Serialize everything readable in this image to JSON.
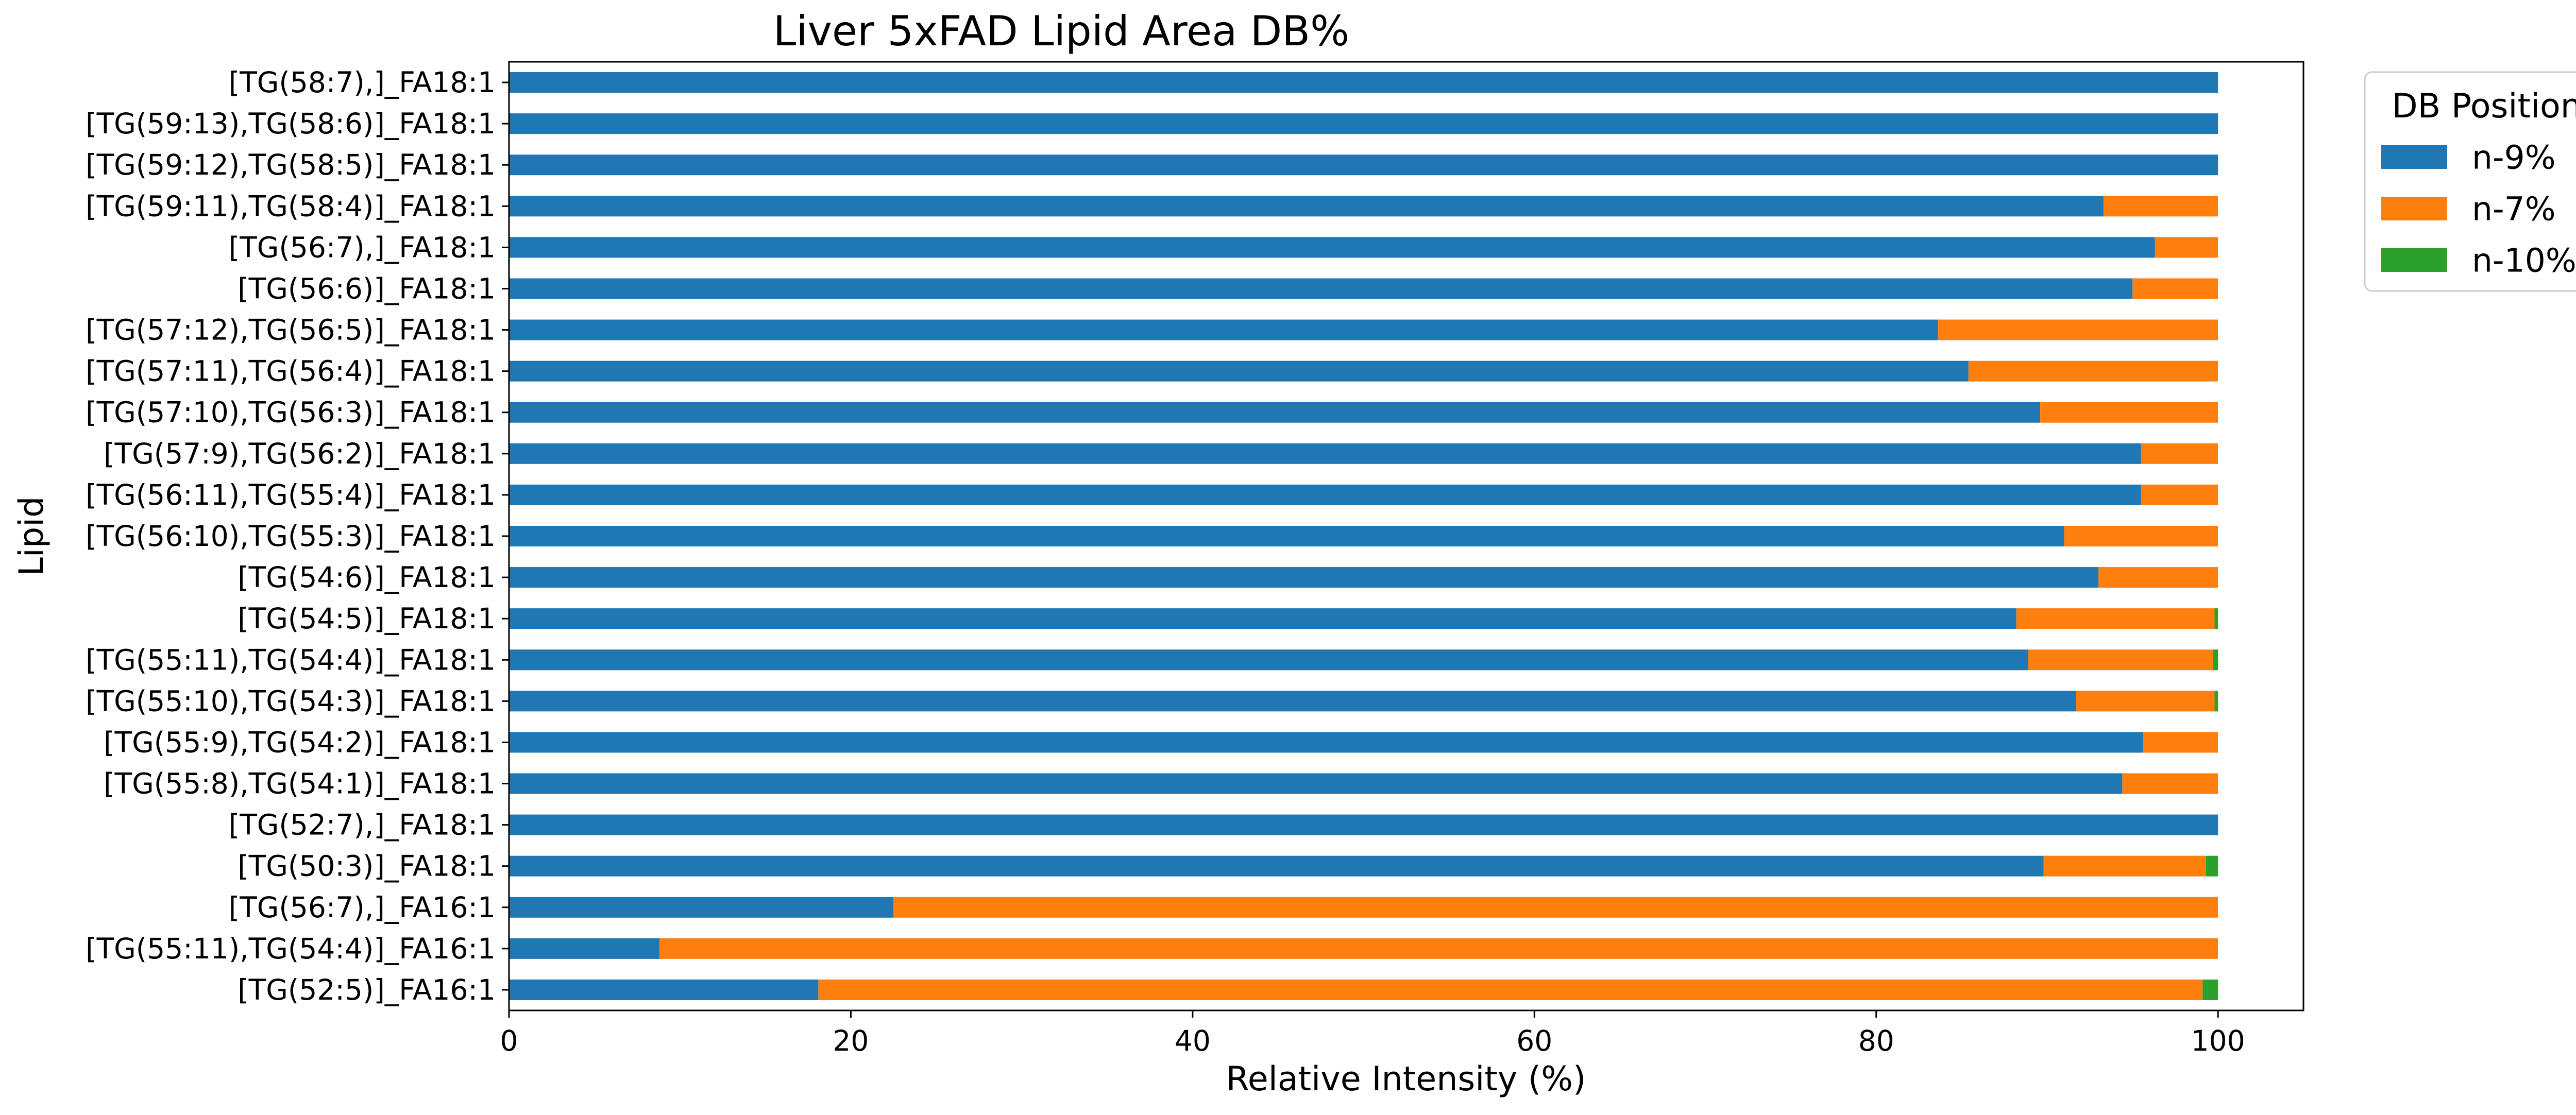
{
  "chart_data": {
    "type": "bar",
    "orientation": "horizontal",
    "stacked": true,
    "title": "Liver 5xFAD Lipid Area DB%",
    "xlabel": "Relative Intensity (%)",
    "ylabel": "Lipid",
    "xlim": [
      0,
      105
    ],
    "xticks": [
      0,
      20,
      40,
      60,
      80,
      100
    ],
    "grid": false,
    "legend": {
      "title": "DB Position %",
      "placement": "outside-top-right"
    },
    "categories": [
      "[TG(58:7),]_FA18:1",
      "[TG(59:13),TG(58:6)]_FA18:1",
      "[TG(59:12),TG(58:5)]_FA18:1",
      "[TG(59:11),TG(58:4)]_FA18:1",
      "[TG(56:7),]_FA18:1",
      "[TG(56:6)]_FA18:1",
      "[TG(57:12),TG(56:5)]_FA18:1",
      "[TG(57:11),TG(56:4)]_FA18:1",
      "[TG(57:10),TG(56:3)]_FA18:1",
      "[TG(57:9),TG(56:2)]_FA18:1",
      "[TG(56:11),TG(55:4)]_FA18:1",
      "[TG(56:10),TG(55:3)]_FA18:1",
      "[TG(54:6)]_FA18:1",
      "[TG(54:5)]_FA18:1",
      "[TG(55:11),TG(54:4)]_FA18:1",
      "[TG(55:10),TG(54:3)]_FA18:1",
      "[TG(55:9),TG(54:2)]_FA18:1",
      "[TG(55:8),TG(54:1)]_FA18:1",
      "[TG(52:7),]_FA18:1",
      "[TG(50:3)]_FA18:1",
      "[TG(56:7),]_FA16:1",
      "[TG(55:11),TG(54:4)]_FA16:1",
      "[TG(52:5)]_FA16:1"
    ],
    "series": [
      {
        "name": "n-9%",
        "color": "#1f77b4",
        "values": [
          100,
          100,
          100,
          93.3,
          96.3,
          95,
          83.6,
          85.4,
          89.6,
          95.5,
          95.5,
          91,
          93,
          88.2,
          88.9,
          91.7,
          95.6,
          94.4,
          100,
          89.8,
          22.5,
          8.8,
          18.1
        ]
      },
      {
        "name": "n-7%",
        "color": "#ff7f0e",
        "values": [
          0,
          0,
          0,
          6.7,
          3.7,
          5,
          16.4,
          14.6,
          10.4,
          4.5,
          4.5,
          9,
          7,
          11.6,
          10.8,
          8.1,
          4.4,
          5.6,
          0,
          9.5,
          77.5,
          91.2,
          81
        ]
      },
      {
        "name": "n-10%",
        "color": "#2ca02c",
        "values": [
          0,
          0,
          0,
          0,
          0,
          0,
          0,
          0,
          0,
          0,
          0,
          0,
          0,
          0.2,
          0.3,
          0.2,
          0,
          0,
          0,
          0.7,
          0,
          0,
          0.9
        ]
      }
    ]
  }
}
